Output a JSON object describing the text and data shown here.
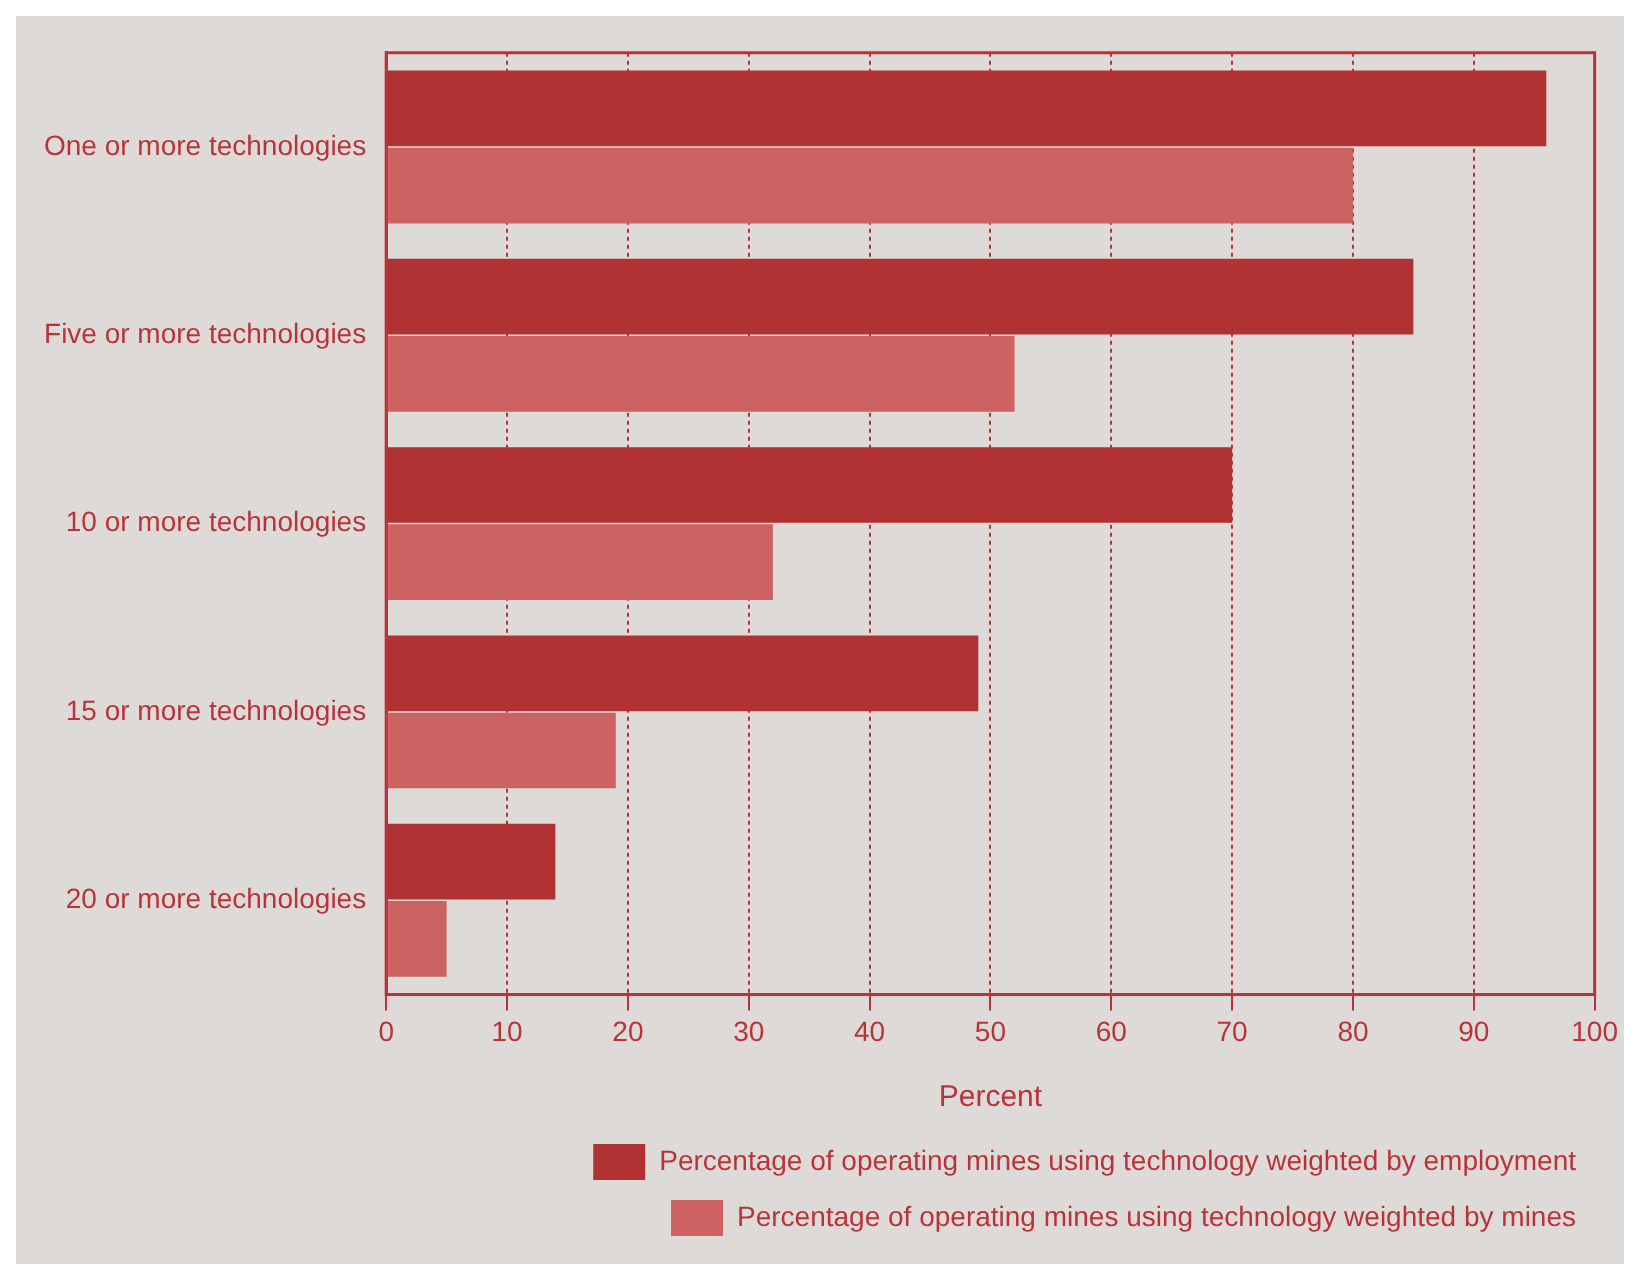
{
  "chart_data": {
    "type": "bar",
    "orientation": "horizontal",
    "xlabel": "Percent",
    "categories": [
      "One or more technologies",
      "Five or more technologies",
      "10 or more technologies",
      "15 or more technologies",
      "20 or more technologies"
    ],
    "series": [
      {
        "name": "Percentage of operating mines using technology weighted by employment",
        "color": "#b03232",
        "values": [
          96,
          85,
          70,
          49,
          14
        ]
      },
      {
        "name": "Percentage of operating mines using technology weighted by mines",
        "color": "#cc6262",
        "values": [
          80,
          52,
          32,
          19,
          5
        ]
      }
    ],
    "xlim": [
      0,
      100
    ],
    "xticks": [
      0,
      10,
      20,
      30,
      40,
      50,
      60,
      70,
      80,
      90,
      100
    ],
    "grid": "x",
    "legend": "bottom"
  }
}
